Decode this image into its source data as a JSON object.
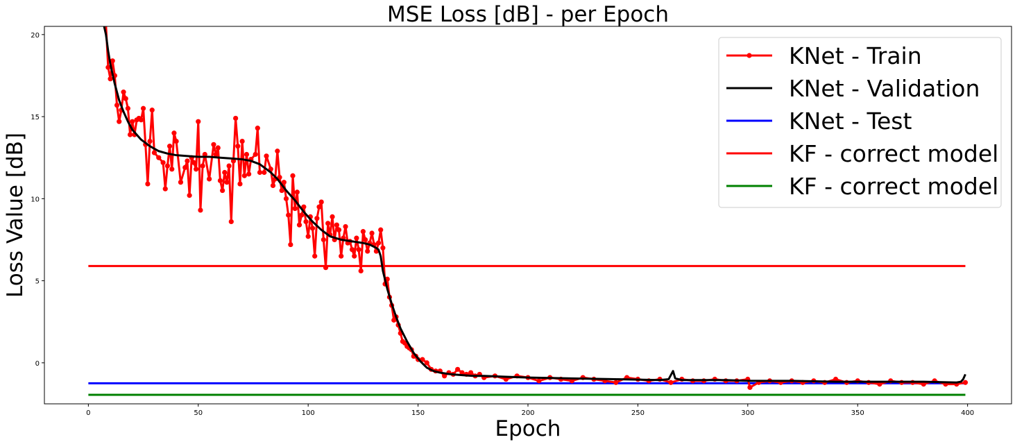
{
  "chart_data": {
    "type": "line",
    "title": "MSE Loss [dB] - per Epoch",
    "xlabel": "Epoch",
    "ylabel": "Loss Value [dB]",
    "xlim": [
      -20,
      420
    ],
    "ylim": [
      -2.5,
      20.5
    ],
    "xticks": [
      0,
      50,
      100,
      150,
      200,
      250,
      300,
      350,
      400
    ],
    "yticks": [
      0,
      5,
      10,
      15,
      20
    ],
    "grid": false,
    "legend_position": "top-right",
    "series": [
      {
        "name": "KNet - Train",
        "color": "#ff0000",
        "marker": "circle",
        "sampled_points": [
          [
            8,
            20.6
          ],
          [
            9,
            18.0
          ],
          [
            10,
            17.3
          ],
          [
            11,
            18.4
          ],
          [
            12,
            17.5
          ],
          [
            13,
            15.7
          ],
          [
            14,
            14.7
          ],
          [
            15,
            15.4
          ],
          [
            16,
            16.5
          ],
          [
            17,
            16.1
          ],
          [
            18,
            15.5
          ],
          [
            19,
            13.9
          ],
          [
            20,
            14.7
          ],
          [
            21,
            13.9
          ],
          [
            22,
            14.8
          ],
          [
            23,
            14.9
          ],
          [
            24,
            14.8
          ],
          [
            25,
            15.5
          ],
          [
            26,
            13.3
          ],
          [
            27,
            10.9
          ],
          [
            28,
            13.5
          ],
          [
            29,
            15.4
          ],
          [
            30,
            12.8
          ],
          [
            32,
            12.5
          ],
          [
            34,
            12.2
          ],
          [
            35,
            10.6
          ],
          [
            36,
            12.0
          ],
          [
            37,
            13.2
          ],
          [
            38,
            11.8
          ],
          [
            39,
            14.0
          ],
          [
            40,
            13.5
          ],
          [
            42,
            11.0
          ],
          [
            44,
            11.9
          ],
          [
            45,
            12.3
          ],
          [
            46,
            10.2
          ],
          [
            47,
            12.5
          ],
          [
            48,
            12.2
          ],
          [
            49,
            11.8
          ],
          [
            50,
            14.7
          ],
          [
            51,
            9.3
          ],
          [
            52,
            12.0
          ],
          [
            53,
            12.7
          ],
          [
            55,
            11.2
          ],
          [
            57,
            13.3
          ],
          [
            58,
            12.7
          ],
          [
            59,
            13.1
          ],
          [
            60,
            11.1
          ],
          [
            61,
            10.5
          ],
          [
            62,
            11.6
          ],
          [
            63,
            11.0
          ],
          [
            64,
            12.0
          ],
          [
            65,
            8.6
          ],
          [
            66,
            12.3
          ],
          [
            67,
            14.9
          ],
          [
            68,
            13.2
          ],
          [
            69,
            10.9
          ],
          [
            70,
            13.5
          ],
          [
            71,
            11.4
          ],
          [
            72,
            12.7
          ],
          [
            73,
            11.5
          ],
          [
            74,
            12.4
          ],
          [
            76,
            12.7
          ],
          [
            77,
            14.3
          ],
          [
            78,
            11.6
          ],
          [
            80,
            11.6
          ],
          [
            81,
            12.6
          ],
          [
            83,
            11.8
          ],
          [
            84,
            10.8
          ],
          [
            85,
            11.2
          ],
          [
            86,
            12.9
          ],
          [
            87,
            11.3
          ],
          [
            88,
            10.5
          ],
          [
            89,
            11.0
          ],
          [
            90,
            10.0
          ],
          [
            91,
            9.0
          ],
          [
            92,
            7.2
          ],
          [
            93,
            11.4
          ],
          [
            94,
            9.4
          ],
          [
            95,
            10.4
          ],
          [
            96,
            8.4
          ],
          [
            97,
            9.0
          ],
          [
            98,
            9.5
          ],
          [
            99,
            8.6
          ],
          [
            100,
            7.7
          ],
          [
            101,
            8.9
          ],
          [
            102,
            8.2
          ],
          [
            103,
            6.5
          ],
          [
            104,
            8.8
          ],
          [
            105,
            9.5
          ],
          [
            106,
            9.8
          ],
          [
            107,
            7.5
          ],
          [
            108,
            5.8
          ],
          [
            109,
            8.5
          ],
          [
            110,
            7.8
          ],
          [
            111,
            8.9
          ],
          [
            112,
            7.5
          ],
          [
            113,
            8.4
          ],
          [
            114,
            8.1
          ],
          [
            115,
            6.5
          ],
          [
            116,
            7.6
          ],
          [
            117,
            8.3
          ],
          [
            118,
            7.3
          ],
          [
            119,
            7.4
          ],
          [
            120,
            6.9
          ],
          [
            121,
            6.5
          ],
          [
            122,
            7.6
          ],
          [
            123,
            6.9
          ],
          [
            124,
            5.6
          ],
          [
            125,
            8.0
          ],
          [
            126,
            7.5
          ],
          [
            127,
            6.8
          ],
          [
            128,
            7.3
          ],
          [
            129,
            7.9
          ],
          [
            130,
            7.2
          ],
          [
            131,
            6.8
          ],
          [
            132,
            7.3
          ],
          [
            133,
            8.1
          ],
          [
            134,
            7.0
          ],
          [
            135,
            4.8
          ],
          [
            136,
            5.1
          ],
          [
            137,
            4.0
          ],
          [
            138,
            3.5
          ],
          [
            139,
            2.6
          ],
          [
            140,
            2.8
          ],
          [
            141,
            2.3
          ],
          [
            142,
            1.8
          ],
          [
            143,
            1.3
          ],
          [
            144,
            1.2
          ],
          [
            145,
            1.0
          ],
          [
            146,
            0.9
          ],
          [
            147,
            0.8
          ],
          [
            148,
            0.4
          ],
          [
            149,
            0.4
          ],
          [
            150,
            0.2
          ],
          [
            152,
            0.2
          ],
          [
            154,
            0.0
          ],
          [
            156,
            -0.4
          ],
          [
            158,
            -0.5
          ],
          [
            160,
            -0.5
          ],
          [
            162,
            -0.8
          ],
          [
            164,
            -0.6
          ],
          [
            166,
            -0.7
          ],
          [
            168,
            -0.4
          ],
          [
            170,
            -0.6
          ],
          [
            172,
            -0.7
          ],
          [
            174,
            -0.6
          ],
          [
            176,
            -0.8
          ],
          [
            178,
            -0.7
          ],
          [
            180,
            -0.9
          ],
          [
            185,
            -0.8
          ],
          [
            190,
            -1.0
          ],
          [
            195,
            -0.8
          ],
          [
            200,
            -0.9
          ],
          [
            205,
            -1.1
          ],
          [
            210,
            -0.9
          ],
          [
            215,
            -1.0
          ],
          [
            220,
            -1.1
          ],
          [
            225,
            -0.9
          ],
          [
            230,
            -1.0
          ],
          [
            235,
            -1.1
          ],
          [
            240,
            -1.2
          ],
          [
            245,
            -0.9
          ],
          [
            250,
            -1.0
          ],
          [
            255,
            -1.1
          ],
          [
            260,
            -1.0
          ],
          [
            265,
            -1.2
          ],
          [
            270,
            -1.0
          ],
          [
            275,
            -1.1
          ],
          [
            280,
            -1.1
          ],
          [
            285,
            -1.0
          ],
          [
            290,
            -1.1
          ],
          [
            295,
            -1.1
          ],
          [
            300,
            -1.0
          ],
          [
            301,
            -1.5
          ],
          [
            305,
            -1.2
          ],
          [
            310,
            -1.1
          ],
          [
            315,
            -1.2
          ],
          [
            320,
            -1.1
          ],
          [
            325,
            -1.2
          ],
          [
            330,
            -1.1
          ],
          [
            335,
            -1.2
          ],
          [
            340,
            -1.0
          ],
          [
            345,
            -1.2
          ],
          [
            350,
            -1.1
          ],
          [
            355,
            -1.2
          ],
          [
            360,
            -1.3
          ],
          [
            365,
            -1.1
          ],
          [
            370,
            -1.2
          ],
          [
            375,
            -1.2
          ],
          [
            380,
            -1.3
          ],
          [
            385,
            -1.1
          ],
          [
            390,
            -1.3
          ],
          [
            395,
            -1.3
          ],
          [
            399,
            -1.2
          ]
        ]
      },
      {
        "name": "KNet - Validation",
        "color": "#000000",
        "sampled_points": [
          [
            7,
            20.6
          ],
          [
            8,
            20.0
          ],
          [
            9,
            19.0
          ],
          [
            10,
            18.2
          ],
          [
            12,
            17.0
          ],
          [
            14,
            16.0
          ],
          [
            16,
            15.3
          ],
          [
            18,
            14.7
          ],
          [
            20,
            14.2
          ],
          [
            24,
            13.6
          ],
          [
            28,
            13.2
          ],
          [
            32,
            12.9
          ],
          [
            36,
            12.75
          ],
          [
            40,
            12.65
          ],
          [
            45,
            12.6
          ],
          [
            50,
            12.55
          ],
          [
            55,
            12.55
          ],
          [
            60,
            12.5
          ],
          [
            65,
            12.45
          ],
          [
            70,
            12.4
          ],
          [
            74,
            12.3
          ],
          [
            78,
            12.1
          ],
          [
            80,
            11.9
          ],
          [
            83,
            11.6
          ],
          [
            86,
            11.2
          ],
          [
            90,
            10.5
          ],
          [
            94,
            9.9
          ],
          [
            98,
            9.2
          ],
          [
            102,
            8.6
          ],
          [
            106,
            8.1
          ],
          [
            110,
            7.7
          ],
          [
            115,
            7.5
          ],
          [
            120,
            7.4
          ],
          [
            125,
            7.3
          ],
          [
            128,
            7.2
          ],
          [
            131,
            7.0
          ],
          [
            132,
            6.9
          ],
          [
            133,
            6.5
          ],
          [
            134,
            5.6
          ],
          [
            136,
            4.5
          ],
          [
            138,
            3.6
          ],
          [
            140,
            2.8
          ],
          [
            142,
            2.1
          ],
          [
            145,
            1.3
          ],
          [
            148,
            0.6
          ],
          [
            151,
            0.1
          ],
          [
            154,
            -0.3
          ],
          [
            157,
            -0.5
          ],
          [
            160,
            -0.6
          ],
          [
            165,
            -0.7
          ],
          [
            170,
            -0.75
          ],
          [
            175,
            -0.8
          ],
          [
            180,
            -0.8
          ],
          [
            190,
            -0.85
          ],
          [
            200,
            -0.9
          ],
          [
            220,
            -0.95
          ],
          [
            240,
            -1.0
          ],
          [
            260,
            -1.05
          ],
          [
            264,
            -1.0
          ],
          [
            266,
            -0.5
          ],
          [
            267,
            -0.95
          ],
          [
            270,
            -1.05
          ],
          [
            290,
            -1.05
          ],
          [
            300,
            -1.1
          ],
          [
            320,
            -1.1
          ],
          [
            340,
            -1.15
          ],
          [
            360,
            -1.15
          ],
          [
            380,
            -1.15
          ],
          [
            395,
            -1.2
          ],
          [
            397,
            -1.15
          ],
          [
            398,
            -1.0
          ],
          [
            399,
            -0.7
          ]
        ]
      },
      {
        "name": "KNet - Test",
        "color": "#0000ff",
        "x_range": [
          0,
          399
        ],
        "value": -1.25
      },
      {
        "name": "KF - correct model",
        "color": "#ff0000",
        "x_range": [
          0,
          399
        ],
        "value": 5.9
      },
      {
        "name": "KF - correct model",
        "color": "#008000",
        "x_range": [
          0,
          399
        ],
        "value": -1.95
      }
    ]
  }
}
